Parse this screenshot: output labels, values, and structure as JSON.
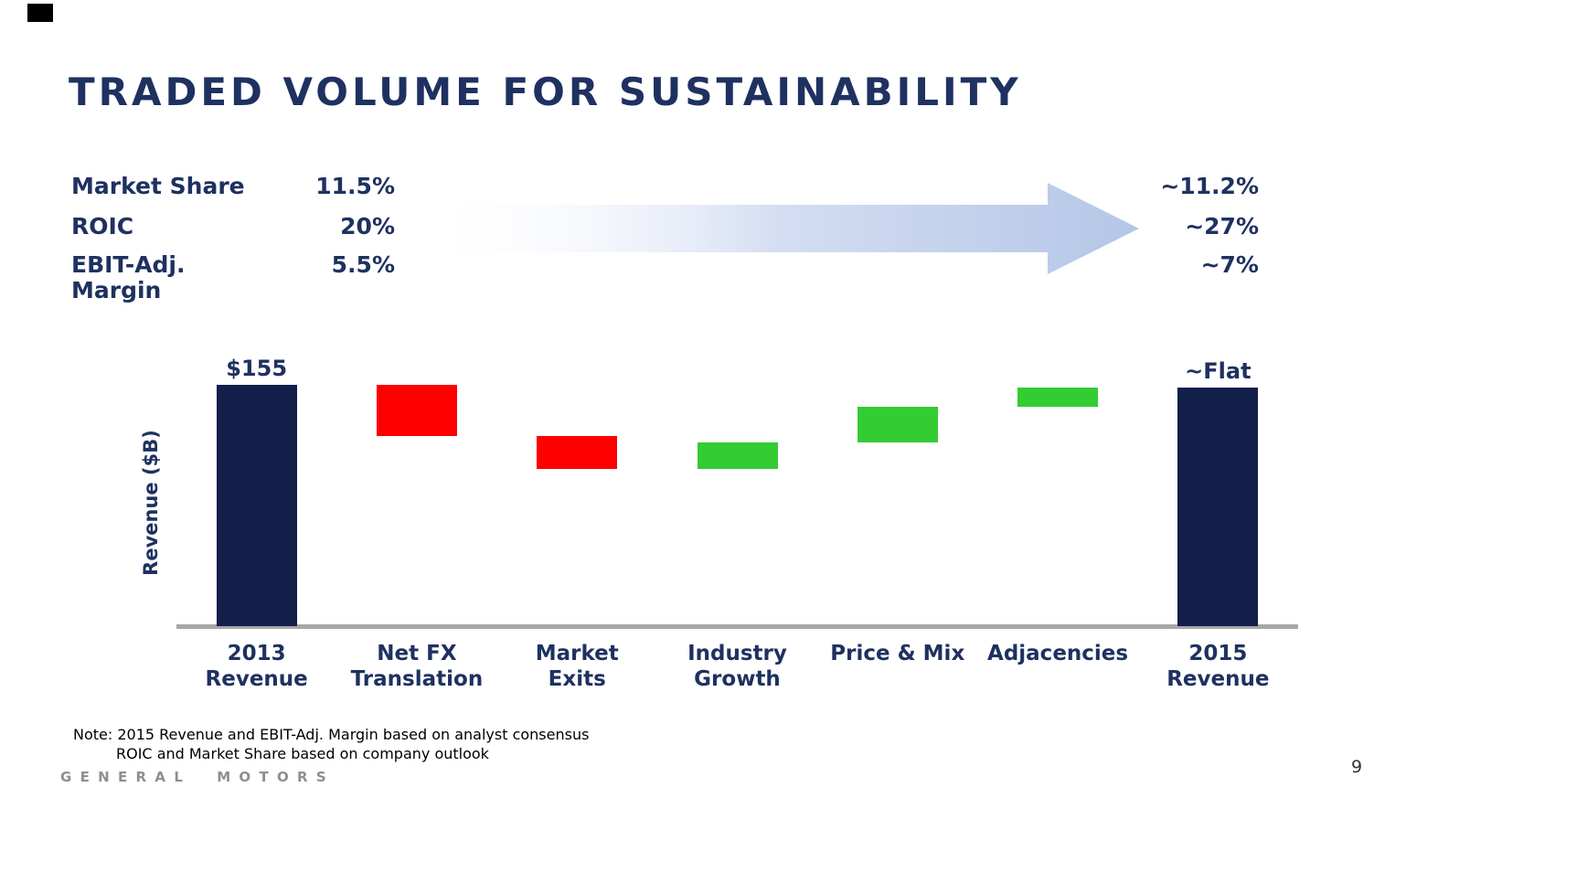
{
  "slide": {
    "title": "TRADED VOLUME FOR SUSTAINABILITY",
    "page_number": "9",
    "footer_brand": "GENERAL MOTORS",
    "note_line1": "Note: 2015 Revenue and EBIT-Adj. Margin based on analyst consensus",
    "note_line2": "ROIC and Market Share based on company outlook"
  },
  "metrics": {
    "rows": [
      {
        "label": "Market Share",
        "from": "11.5%",
        "to": "~11.2%"
      },
      {
        "label": "ROIC",
        "from": "20%",
        "to": "~27%"
      },
      {
        "label": "EBIT-Adj.\nMargin",
        "from": "5.5%",
        "to": "~7%"
      }
    ],
    "arrow_color": "#b4c6e7"
  },
  "chart_data": {
    "type": "bar",
    "subtype": "waterfall",
    "title": "",
    "xlabel": "",
    "ylabel": "Revenue ($B)",
    "ylim": [
      0,
      170
    ],
    "grid": false,
    "axis_color": "#a7a7a7",
    "categories": [
      "2013 Revenue",
      "Net FX Translation",
      "Market Exits",
      "Industry Growth",
      "Price & Mix",
      "Adjacencies",
      "2015 Revenue"
    ],
    "labeled_values": {
      "2013 Revenue": "$155",
      "2015 Revenue": "~Flat"
    },
    "bars": [
      {
        "label": "2013\nRevenue",
        "kind": "total",
        "value": 155,
        "top_label": "$155",
        "color": "#131f4b"
      },
      {
        "label": "Net FX\nTranslation",
        "kind": "decrease",
        "value": 33,
        "color": "#fe0000"
      },
      {
        "label": "Market\nExits",
        "kind": "decrease",
        "value": 21,
        "color": "#fe0000"
      },
      {
        "label": "Industry\nGrowth",
        "kind": "increase",
        "value": 17,
        "color": "#33cc33"
      },
      {
        "label": "Price & Mix",
        "kind": "increase",
        "value": 23,
        "color": "#33cc33"
      },
      {
        "label": "Adjacencies",
        "kind": "increase",
        "value": 12,
        "color": "#33cc33"
      },
      {
        "label": "2015\nRevenue",
        "kind": "total",
        "value": 153,
        "top_label": "~Flat",
        "color": "#131f4b"
      }
    ]
  }
}
